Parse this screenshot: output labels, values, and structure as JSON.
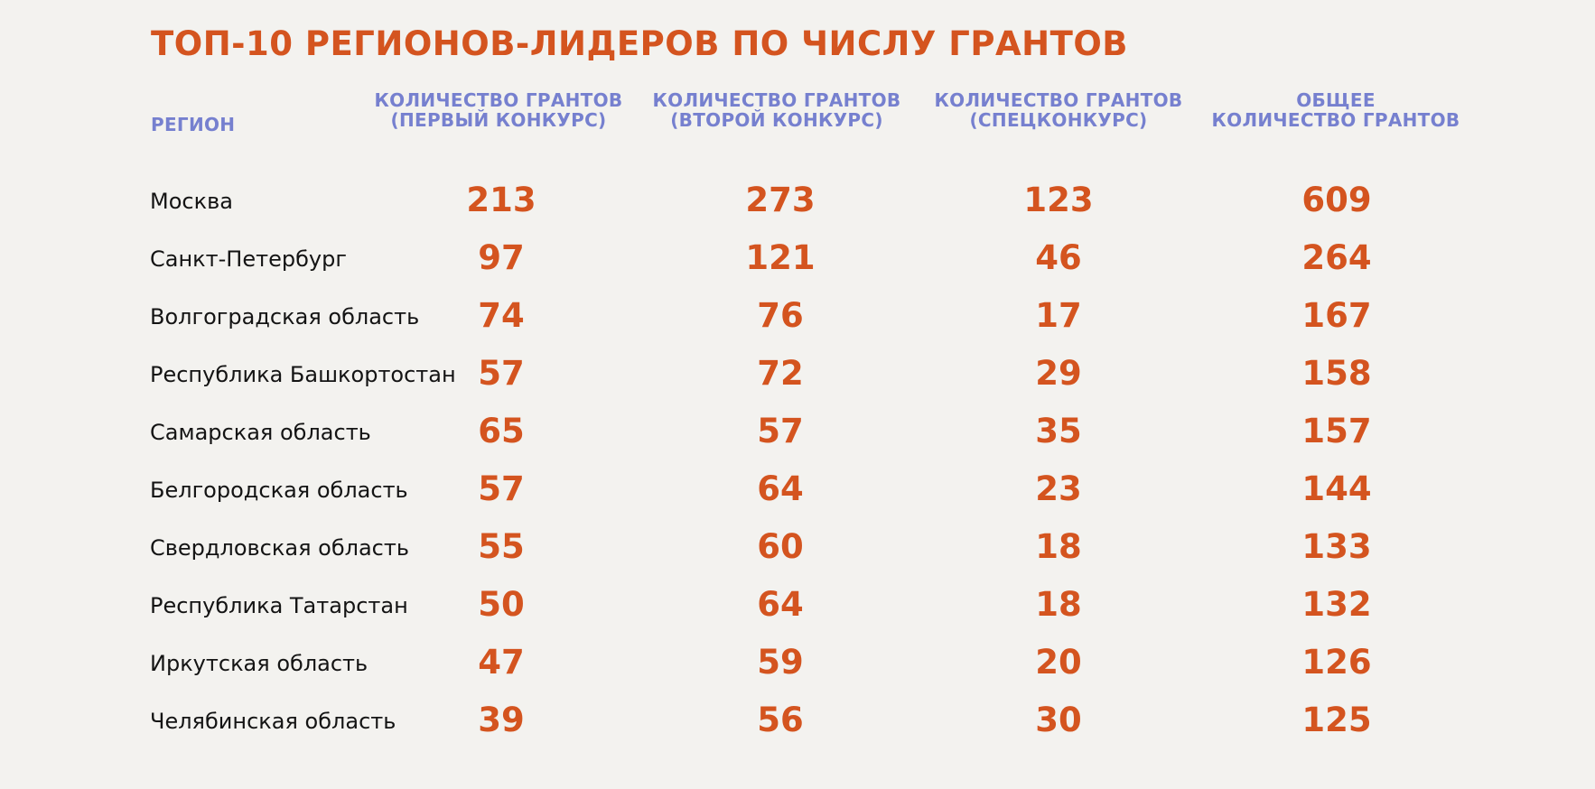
{
  "title": "ТОП-10 РЕГИОНОВ-ЛИДЕРОВ ПО ЧИСЛУ ГРАНТОВ",
  "headers": {
    "region": "РЕГИОН",
    "c1": [
      "КОЛИЧЕСТВО ГРАНТОВ",
      "(ПЕРВЫЙ КОНКУРС)"
    ],
    "c2": [
      "КОЛИЧЕСТВО ГРАНТОВ",
      "(ВТОРОЙ КОНКУРС)"
    ],
    "c3": [
      "КОЛИЧЕСТВО ГРАНТОВ",
      "(СПЕЦКОНКУРС)"
    ],
    "c4": [
      "ОБЩЕЕ",
      "КОЛИЧЕСТВО ГРАНТОВ"
    ]
  },
  "colors": {
    "accent": "#d4541f",
    "header": "#7680cf",
    "text": "#141414",
    "background": "#f3f2ef"
  },
  "chart_data": {
    "type": "table",
    "title": "ТОП-10 РЕГИОНОВ-ЛИДЕРОВ ПО ЧИСЛУ ГРАНТОВ",
    "columns": [
      "РЕГИОН",
      "КОЛИЧЕСТВО ГРАНТОВ (ПЕРВЫЙ КОНКУРС)",
      "КОЛИЧЕСТВО ГРАНТОВ (ВТОРОЙ КОНКУРС)",
      "КОЛИЧЕСТВО ГРАНТОВ (СПЕЦКОНКУРС)",
      "ОБЩЕЕ КОЛИЧЕСТВО ГРАНТОВ"
    ],
    "rows": [
      {
        "region": "Москва",
        "first": 213,
        "second": 273,
        "special": 123,
        "total": 609
      },
      {
        "region": "Санкт-Петербург",
        "first": 97,
        "second": 121,
        "special": 46,
        "total": 264
      },
      {
        "region": "Волгоградская область",
        "first": 74,
        "second": 76,
        "special": 17,
        "total": 167
      },
      {
        "region": "Республика Башкортостан",
        "first": 57,
        "second": 72,
        "special": 29,
        "total": 158
      },
      {
        "region": "Самарская область",
        "first": 65,
        "second": 57,
        "special": 35,
        "total": 157
      },
      {
        "region": "Белгородская область",
        "first": 57,
        "second": 64,
        "special": 23,
        "total": 144
      },
      {
        "region": "Свердловская область",
        "first": 55,
        "second": 60,
        "special": 18,
        "total": 133
      },
      {
        "region": "Республика Татарстан",
        "first": 50,
        "second": 64,
        "special": 18,
        "total": 132
      },
      {
        "region": "Иркутская область",
        "first": 47,
        "second": 59,
        "special": 20,
        "total": 126
      },
      {
        "region": "Челябинская область",
        "first": 39,
        "second": 56,
        "special": 30,
        "total": 125
      }
    ]
  }
}
